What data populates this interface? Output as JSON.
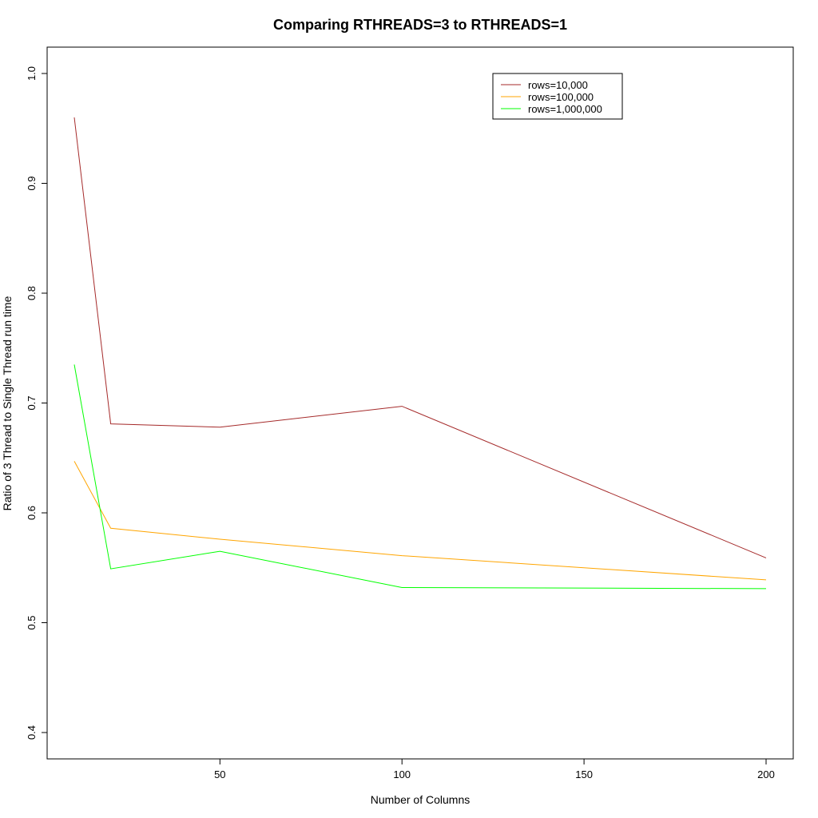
{
  "chart_data": {
    "type": "line",
    "title": "Comparing RTHREADS=3 to RTHREADS=1",
    "xlabel": "Number of Columns",
    "ylabel": "Ratio of 3 Thread to Single Thread run time",
    "xlim": [
      10,
      200
    ],
    "ylim": [
      0.4,
      1.0
    ],
    "xticks": [
      50,
      100,
      150,
      200
    ],
    "yticks": [
      0.4,
      0.5,
      0.6,
      0.7,
      0.8,
      0.9,
      1.0
    ],
    "xtick_labels": [
      "50",
      "100",
      "150",
      "200"
    ],
    "ytick_labels": [
      "0.4",
      "0.5",
      "0.6",
      "0.7",
      "0.8",
      "0.9",
      "1.0"
    ],
    "grid": false,
    "legend_position": "top-right",
    "x": [
      10,
      20,
      50,
      100,
      200
    ],
    "series": [
      {
        "name": "rows=10,000",
        "color": "#a52a2a",
        "values": [
          0.96,
          0.681,
          0.678,
          0.697,
          0.559
        ]
      },
      {
        "name": "rows=100,000",
        "color": "#ffa500",
        "values": [
          0.647,
          0.586,
          0.576,
          0.561,
          0.539
        ]
      },
      {
        "name": "rows=1,000,000",
        "color": "#00ff00",
        "values": [
          0.735,
          0.549,
          0.565,
          0.532,
          0.531
        ]
      }
    ]
  }
}
